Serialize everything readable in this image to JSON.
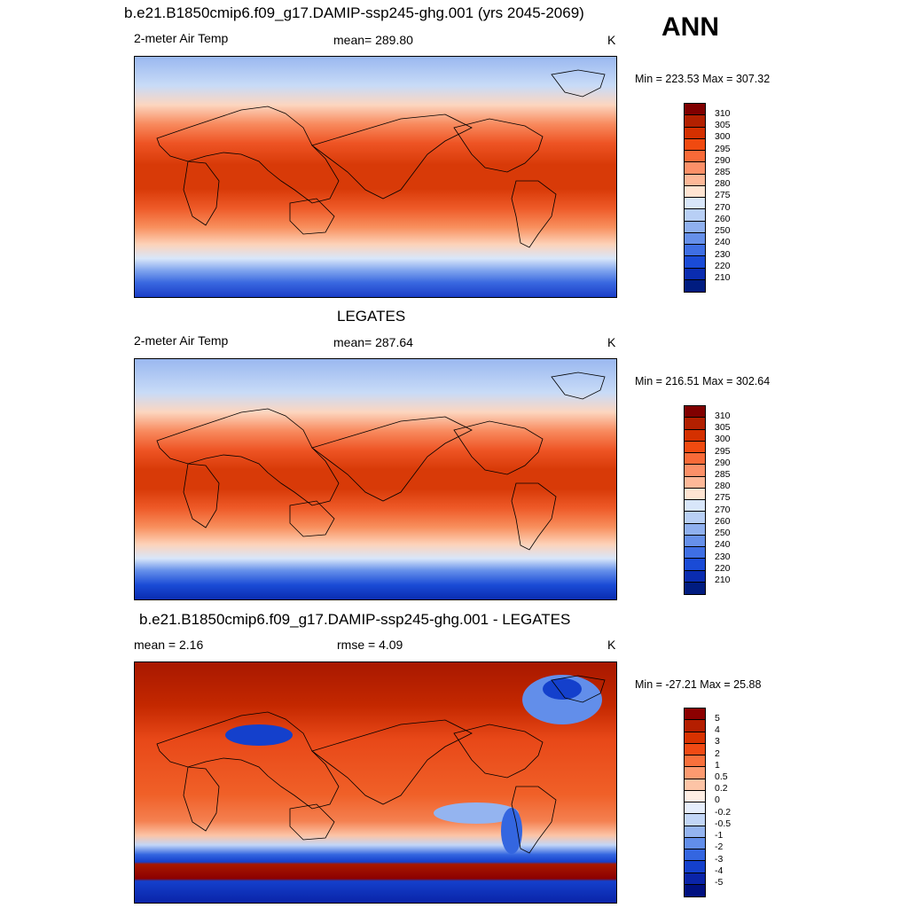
{
  "season": "ANN",
  "panels": [
    {
      "title": "b.e21.B1850cmip6.f09_g17.DAMIP-ssp245-ghg.001 (yrs 2045-2069)",
      "left_label": "2-meter Air Temp",
      "center_label": "mean= 289.80",
      "units": "K",
      "minmax": "Min = 223.53 Max = 307.32",
      "colorbar_labels": [
        "310",
        "305",
        "300",
        "295",
        "290",
        "285",
        "280",
        "275",
        "270",
        "260",
        "250",
        "240",
        "230",
        "220",
        "210"
      ],
      "colors": [
        "#800000",
        "#b22000",
        "#d43000",
        "#f04a10",
        "#f86a38",
        "#fc9068",
        "#fdb898",
        "#ffe4d2",
        "#d8e6fa",
        "#b8cff5",
        "#8fb0ef",
        "#6690ea",
        "#3f6fe4",
        "#1a4bd6",
        "#0a2cb0",
        "#001c80"
      ]
    },
    {
      "title": "LEGATES",
      "left_label": "2-meter Air Temp",
      "center_label": "mean= 287.64",
      "units": "K",
      "minmax": "Min = 216.51 Max = 302.64",
      "colorbar_labels": [
        "310",
        "305",
        "300",
        "295",
        "290",
        "285",
        "280",
        "275",
        "270",
        "260",
        "250",
        "240",
        "230",
        "220",
        "210"
      ],
      "colors": [
        "#800000",
        "#b22000",
        "#d43000",
        "#f04a10",
        "#f86a38",
        "#fc9068",
        "#fdb898",
        "#ffe4d2",
        "#d8e6fa",
        "#b8cff5",
        "#8fb0ef",
        "#6690ea",
        "#3f6fe4",
        "#1a4bd6",
        "#0a2cb0",
        "#001c80"
      ]
    },
    {
      "title": "b.e21.B1850cmip6.f09_g17.DAMIP-ssp245-ghg.001 - LEGATES",
      "left_label": "mean =   2.16",
      "center_label": "rmse =   4.09",
      "units": "K",
      "minmax": "Min = -27.21 Max =  25.88",
      "colorbar_labels": [
        "5",
        "4",
        "3",
        "2",
        "1",
        "0.5",
        "0.2",
        "0",
        "-0.2",
        "-0.5",
        "-1",
        "-2",
        "-3",
        "-4",
        "-5"
      ],
      "colors": [
        "#8c0000",
        "#b41e00",
        "#d83200",
        "#f04a14",
        "#f8703c",
        "#fc9a70",
        "#fdc4a6",
        "#ffeee4",
        "#e6eefc",
        "#c2d6f7",
        "#94b4f0",
        "#628eea",
        "#3466e0",
        "#1440cc",
        "#0a24a8",
        "#001080"
      ]
    }
  ]
}
